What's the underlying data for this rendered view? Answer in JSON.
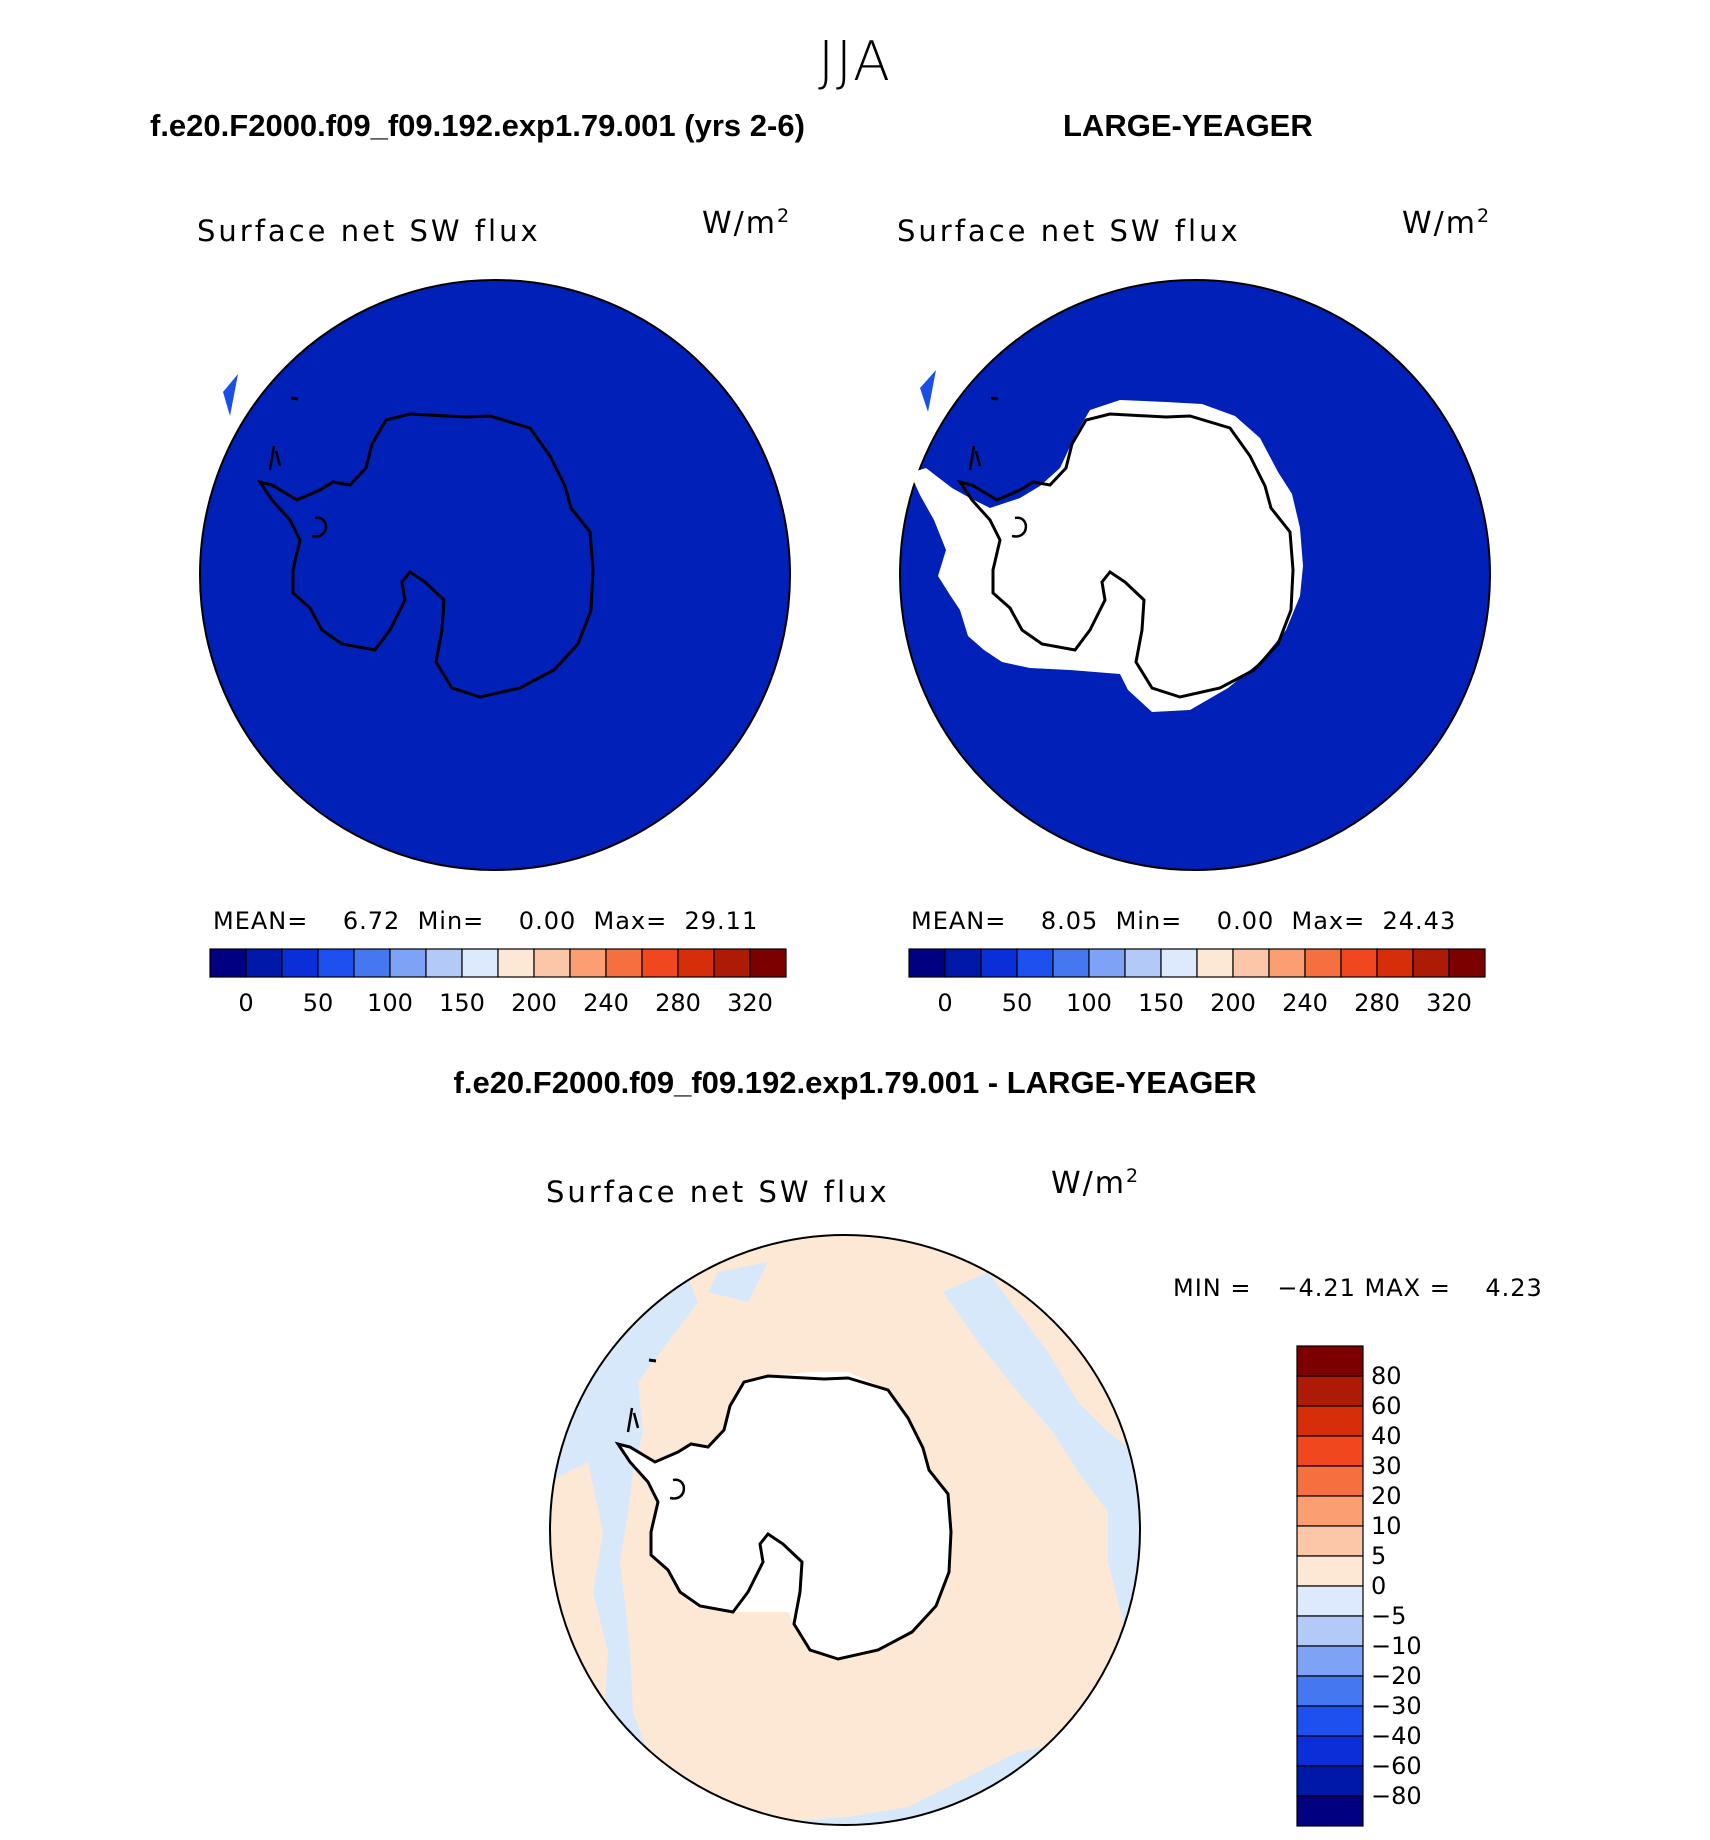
{
  "figure": {
    "title": "JJA",
    "left_case": "f.e20.F2000.f09_f09.192.exp1.79.001 (yrs 2-6)",
    "right_case": "LARGE-YEAGER",
    "diff_title": "f.e20.F2000.f09_f09.192.exp1.79.001 - LARGE-YEAGER"
  },
  "panels": [
    {
      "id": "model",
      "plot_label": "Surface net SW flux",
      "units": "W/m",
      "units_sup": "2",
      "stats": {
        "mean_label": "MEAN=",
        "mean": "6.72",
        "min_label": "Min=",
        "min": "0.00",
        "max_label": "Max=",
        "max": "29.11"
      },
      "fill_color": "#0020b8",
      "antarctica_fill": "same-as-ocean"
    },
    {
      "id": "obs",
      "plot_label": "Surface net SW flux",
      "units": "W/m",
      "units_sup": "2",
      "stats": {
        "mean_label": "MEAN=",
        "mean": "8.05",
        "min_label": "Min=",
        "min": "0.00",
        "max_label": "Max=",
        "max": "24.43"
      },
      "fill_color": "#0020b8",
      "antarctica_fill": "missing-white"
    },
    {
      "id": "difference",
      "plot_label": "Surface net SW flux",
      "units": "W/m",
      "units_sup": "2",
      "stats_text": "MIN =   −4.21 MAX =    4.23",
      "dominant_colors": [
        "#fde8d6",
        "#d8e8fb"
      ]
    }
  ],
  "colorbar_abs": {
    "colors": [
      "#000080",
      "#0018a8",
      "#0a2fd8",
      "#1e50f0",
      "#4577f0",
      "#7ea2f5",
      "#b3caf8",
      "#dde9fc",
      "#fde8d6",
      "#fcc6a8",
      "#fb9e72",
      "#f6703f",
      "#f1471f",
      "#d62e08",
      "#ad1a06",
      "#7c0000"
    ],
    "tick_labels": [
      "0",
      "50",
      "100",
      "150",
      "200",
      "240",
      "280",
      "320"
    ]
  },
  "colorbar_diff": {
    "colors_top_to_bottom": [
      "#7c0000",
      "#ad1a06",
      "#d62e08",
      "#f1471f",
      "#f6703f",
      "#fb9e72",
      "#fcc6a8",
      "#fde8d6",
      "#dde9fc",
      "#b3caf8",
      "#7ea2f5",
      "#4577f0",
      "#1e50f0",
      "#0a2fd8",
      "#0018a8",
      "#000080"
    ],
    "tick_labels": [
      "80",
      "60",
      "40",
      "30",
      "20",
      "10",
      "5",
      "0",
      "−5",
      "−10",
      "−20",
      "−30",
      "−40",
      "−60",
      "−80"
    ]
  }
}
